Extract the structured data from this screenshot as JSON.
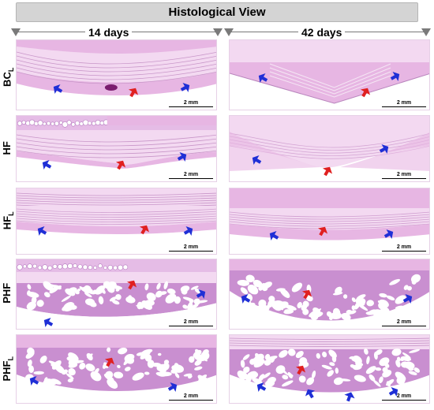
{
  "header": {
    "title": "Histological View"
  },
  "columns": [
    {
      "label": "14 days"
    },
    {
      "label": "42 days"
    }
  ],
  "rows": [
    {
      "label": "BC",
      "subscript": "L"
    },
    {
      "label": "HF",
      "subscript": ""
    },
    {
      "label": "HF",
      "subscript": "L"
    },
    {
      "label": "PHF",
      "subscript": ""
    },
    {
      "label": "PHF",
      "subscript": "L"
    }
  ],
  "scale_bar": {
    "label": "2 mm"
  },
  "colors": {
    "tissue_pink": "#e7b6e3",
    "tissue_light": "#f3d9f1",
    "bone_purple": "#c98fd0",
    "arrow_blue": "#1f2fd6",
    "arrow_red": "#e02020",
    "header_gray": "#d4d4d4"
  }
}
